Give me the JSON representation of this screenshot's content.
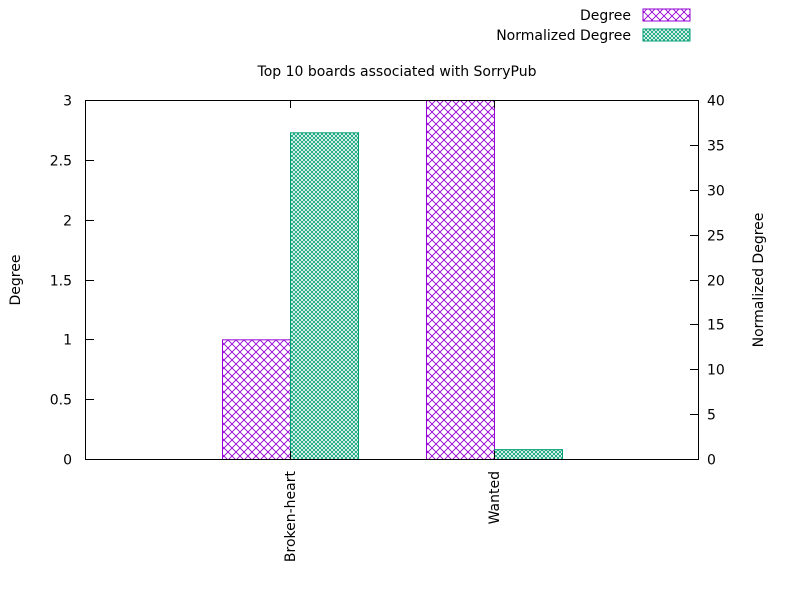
{
  "chart_data": {
    "type": "bar",
    "title": "Top 10 boards associated with SorryPub",
    "categories": [
      "Broken-heart",
      "Wanted"
    ],
    "y_axis": {
      "label": "Degree",
      "ylim": [
        0,
        3
      ],
      "ticks": [
        0,
        0.5,
        1,
        1.5,
        2,
        2.5,
        3
      ],
      "tick_labels": [
        "0",
        "0.5",
        "1",
        "1.5",
        "2",
        "2.5",
        "3"
      ]
    },
    "y2_axis": {
      "label": "Normalized Degree",
      "ylim": [
        0,
        40
      ],
      "ticks": [
        0,
        5,
        10,
        15,
        20,
        25,
        30,
        35,
        40
      ],
      "tick_labels": [
        "0",
        "5",
        "10",
        "15",
        "20",
        "25",
        "30",
        "35",
        "40"
      ]
    },
    "series": [
      {
        "name": "Degree",
        "axis": "y",
        "values": [
          1,
          3
        ],
        "color": "#9400d3",
        "pattern": "crosshatch"
      },
      {
        "name": "Normalized Degree",
        "axis": "y2",
        "values": [
          36.4,
          1.1
        ],
        "color": "#009e73",
        "pattern": "fine-crosshatch"
      }
    ],
    "legend_position": "top-right",
    "grid": false
  }
}
